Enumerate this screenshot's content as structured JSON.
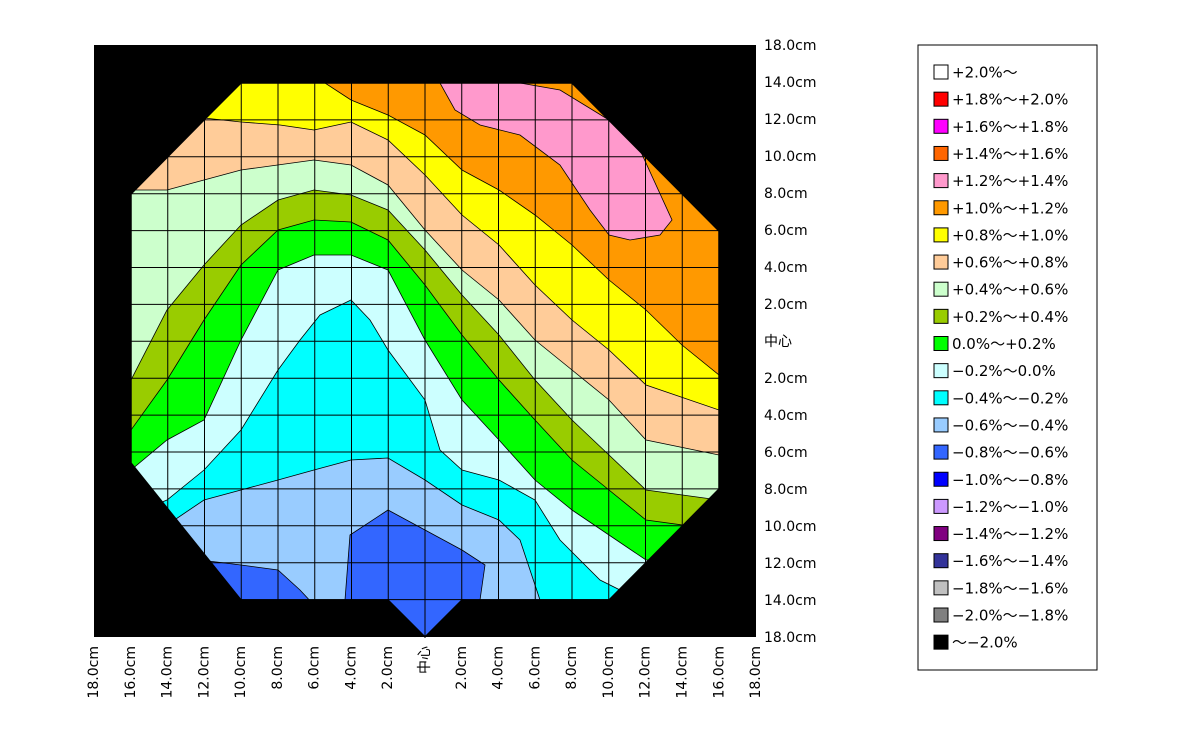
{
  "chart_data": {
    "type": "contour",
    "y_labels": [
      "18.0cm",
      "14.0cm",
      "12.0cm",
      "10.0cm",
      "8.0cm",
      "6.0cm",
      "4.0cm",
      "2.0cm",
      "中心",
      "2.0cm",
      "4.0cm",
      "6.0cm",
      "8.0cm",
      "10.0cm",
      "12.0cm",
      "14.0cm",
      "18.0cm"
    ],
    "x_labels": [
      "18.0cm",
      "16.0cm",
      "14.0cm",
      "12.0cm",
      "10.0cm",
      "8.0cm",
      "6.0cm",
      "4.0cm",
      "2.0cm",
      "中心",
      "2.0cm",
      "4.0cm",
      "6.0cm",
      "8.0cm",
      "10.0cm",
      "12.0cm",
      "14.0cm",
      "16.0cm",
      "18.0cm"
    ],
    "legend": [
      {
        "label": "+2.0%～",
        "color": "#ffffff"
      },
      {
        "label": "+1.8%～+2.0%",
        "color": "#ff0000"
      },
      {
        "label": "+1.6%～+1.8%",
        "color": "#ff00ff"
      },
      {
        "label": "+1.4%～+1.6%",
        "color": "#ff6600"
      },
      {
        "label": "+1.2%～+1.4%",
        "color": "#ff99cc"
      },
      {
        "label": "+1.0%～+1.2%",
        "color": "#ff9900"
      },
      {
        "label": "+0.8%～+1.0%",
        "color": "#ffff00"
      },
      {
        "label": "+0.6%～+0.8%",
        "color": "#ffcc99"
      },
      {
        "label": "+0.4%～+0.6%",
        "color": "#ccffcc"
      },
      {
        "label": "+0.2%～+0.4%",
        "color": "#99cc00"
      },
      {
        "label": "0.0%～+0.2%",
        "color": "#00ff00"
      },
      {
        "label": "−0.2%～0.0%",
        "color": "#ccffff"
      },
      {
        "label": "−0.4%～−0.2%",
        "color": "#00ffff"
      },
      {
        "label": "−0.6%～−0.4%",
        "color": "#99ccff"
      },
      {
        "label": "−0.8%～−0.6%",
        "color": "#3366ff"
      },
      {
        "label": "−1.0%～−0.8%",
        "color": "#0000ff"
      },
      {
        "label": "−1.2%～−1.0%",
        "color": "#cc99ff"
      },
      {
        "label": "−1.4%～−1.2%",
        "color": "#800080"
      },
      {
        "label": "−1.6%～−1.4%",
        "color": "#333399"
      },
      {
        "label": "−1.8%～−1.6%",
        "color": "#c0c0c0"
      },
      {
        "label": "−2.0%～−1.8%",
        "color": "#808080"
      },
      {
        "label": "～−2.0%",
        "color": "#000000"
      }
    ]
  }
}
